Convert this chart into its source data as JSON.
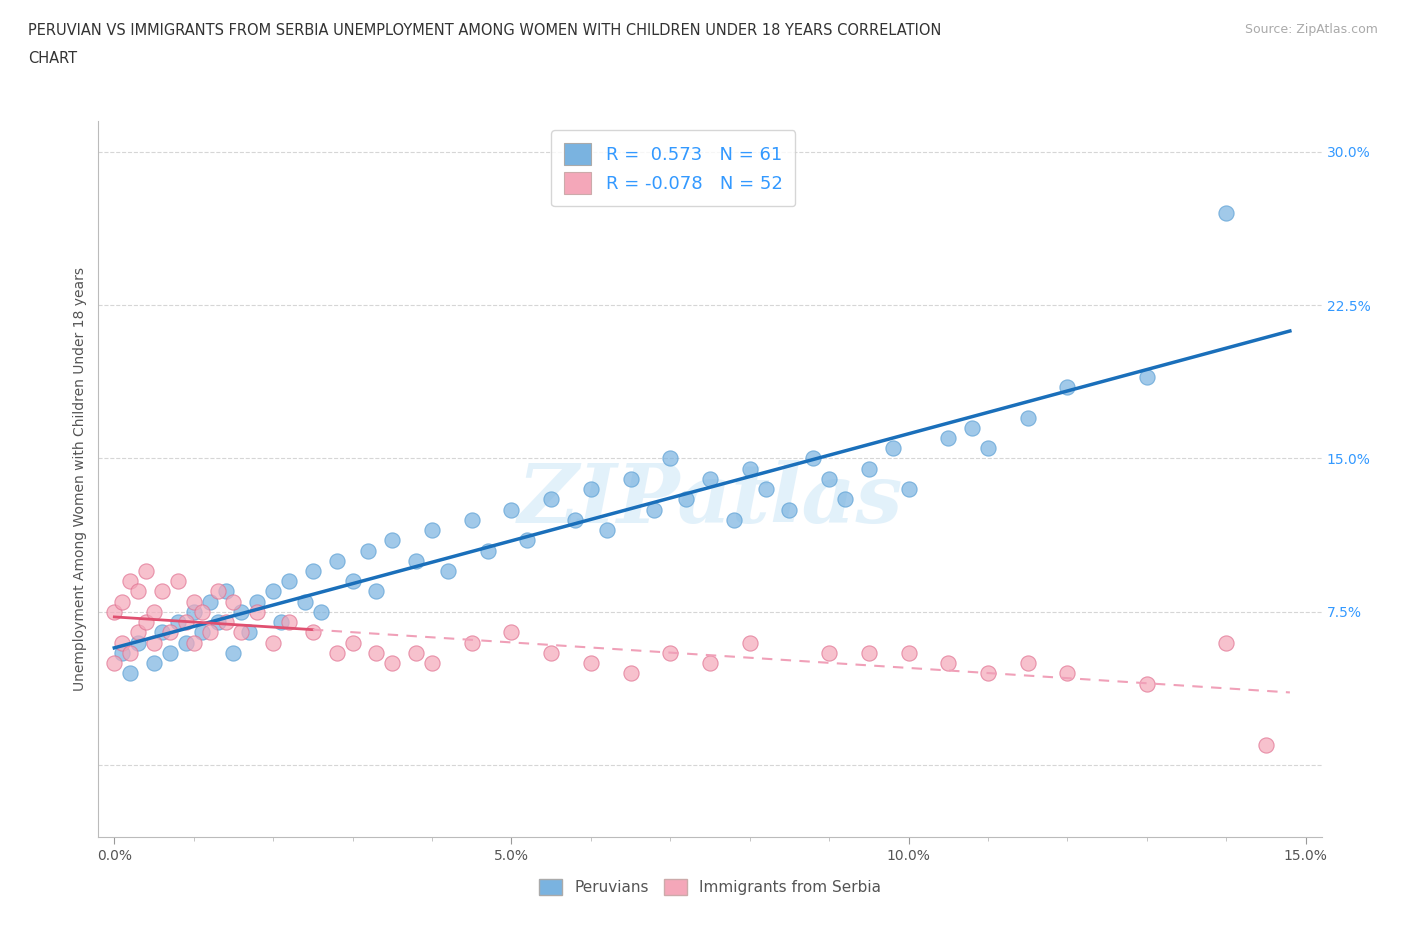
{
  "title_line1": "PERUVIAN VS IMMIGRANTS FROM SERBIA UNEMPLOYMENT AMONG WOMEN WITH CHILDREN UNDER 18 YEARS CORRELATION",
  "title_line2": "CHART",
  "source": "Source: ZipAtlas.com",
  "ylabel": "Unemployment Among Women with Children Under 18 years",
  "peruvian_color": "#7ab3e0",
  "peruvian_edge": "#5a9fd4",
  "serbia_color": "#f4a7b9",
  "serbia_edge": "#e07090",
  "trendline_peruvian_color": "#1a6fba",
  "trendline_serbia_solid_color": "#e05070",
  "trendline_serbia_dash_color": "#f0a0b8",
  "watermark_text": "ZIPatlas",
  "background_color": "#ffffff",
  "grid_color": "#cccccc",
  "peruvians_label": "Peruvians",
  "serbia_label": "Immigrants from Serbia",
  "legend_r1_label": "R =  0.573   N = 61",
  "legend_r2_label": "R = -0.078   N = 52",
  "peru_x": [
    0.001,
    0.002,
    0.003,
    0.005,
    0.006,
    0.007,
    0.008,
    0.009,
    0.01,
    0.011,
    0.012,
    0.013,
    0.014,
    0.015,
    0.016,
    0.017,
    0.018,
    0.02,
    0.021,
    0.022,
    0.024,
    0.025,
    0.026,
    0.028,
    0.03,
    0.032,
    0.033,
    0.035,
    0.038,
    0.04,
    0.042,
    0.045,
    0.047,
    0.05,
    0.052,
    0.055,
    0.058,
    0.06,
    0.062,
    0.065,
    0.068,
    0.07,
    0.072,
    0.075,
    0.078,
    0.08,
    0.082,
    0.085,
    0.088,
    0.09,
    0.092,
    0.095,
    0.098,
    0.1,
    0.105,
    0.108,
    0.11,
    0.115,
    0.12,
    0.13,
    0.14
  ],
  "peru_y": [
    0.055,
    0.045,
    0.06,
    0.05,
    0.065,
    0.055,
    0.07,
    0.06,
    0.075,
    0.065,
    0.08,
    0.07,
    0.085,
    0.055,
    0.075,
    0.065,
    0.08,
    0.085,
    0.07,
    0.09,
    0.08,
    0.095,
    0.075,
    0.1,
    0.09,
    0.105,
    0.085,
    0.11,
    0.1,
    0.115,
    0.095,
    0.12,
    0.105,
    0.125,
    0.11,
    0.13,
    0.12,
    0.135,
    0.115,
    0.14,
    0.125,
    0.15,
    0.13,
    0.14,
    0.12,
    0.145,
    0.135,
    0.125,
    0.15,
    0.14,
    0.13,
    0.145,
    0.155,
    0.135,
    0.16,
    0.165,
    0.155,
    0.17,
    0.185,
    0.19,
    0.27
  ],
  "serb_x": [
    0.0,
    0.0,
    0.001,
    0.001,
    0.002,
    0.002,
    0.003,
    0.003,
    0.004,
    0.004,
    0.005,
    0.005,
    0.006,
    0.007,
    0.008,
    0.009,
    0.01,
    0.01,
    0.011,
    0.012,
    0.013,
    0.014,
    0.015,
    0.016,
    0.018,
    0.02,
    0.022,
    0.025,
    0.028,
    0.03,
    0.033,
    0.035,
    0.038,
    0.04,
    0.045,
    0.05,
    0.055,
    0.06,
    0.065,
    0.07,
    0.075,
    0.08,
    0.09,
    0.095,
    0.1,
    0.105,
    0.11,
    0.115,
    0.12,
    0.13,
    0.14,
    0.145
  ],
  "serb_y": [
    0.05,
    0.075,
    0.06,
    0.08,
    0.055,
    0.09,
    0.065,
    0.085,
    0.07,
    0.095,
    0.06,
    0.075,
    0.085,
    0.065,
    0.09,
    0.07,
    0.08,
    0.06,
    0.075,
    0.065,
    0.085,
    0.07,
    0.08,
    0.065,
    0.075,
    0.06,
    0.07,
    0.065,
    0.055,
    0.06,
    0.055,
    0.05,
    0.055,
    0.05,
    0.06,
    0.065,
    0.055,
    0.05,
    0.045,
    0.055,
    0.05,
    0.06,
    0.055,
    0.055,
    0.055,
    0.05,
    0.045,
    0.05,
    0.045,
    0.04,
    0.06,
    0.01
  ],
  "xlim": [
    -0.002,
    0.152
  ],
  "ylim": [
    -0.035,
    0.315
  ],
  "yticks": [
    0.0,
    0.075,
    0.15,
    0.225,
    0.3
  ],
  "xticks": [
    0.0,
    0.05,
    0.1,
    0.15
  ],
  "right_tick_labels": [
    "",
    "7.5%",
    "15.0%",
    "22.5%",
    "30.0%"
  ],
  "title_fontsize": 10.5,
  "axis_label_fontsize": 10,
  "tick_fontsize": 10,
  "right_tick_color": "#3399ff",
  "axis_color": "#aaaaaa"
}
